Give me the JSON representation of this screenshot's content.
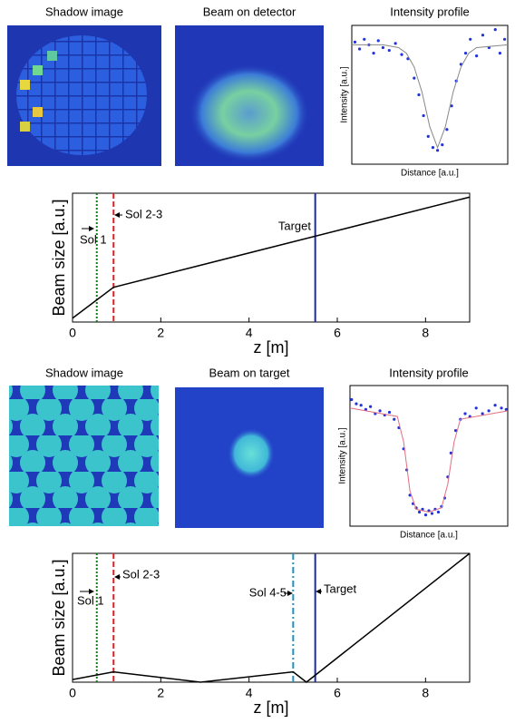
{
  "images": [
    {
      "title": "Shadow image"
    },
    {
      "title": "Beam on detector"
    },
    {
      "title": "Shadow image"
    },
    {
      "title": "Beam on target"
    }
  ],
  "chart_data": [
    {
      "type": "scatter",
      "title": "Intensity profile",
      "xlabel": "Distance [a.u.]",
      "ylabel": "Intensity [a.u.]",
      "xlim": [
        0,
        1
      ],
      "ylim": [
        0,
        1
      ],
      "series": [
        {
          "color": "#2233dd",
          "mode": "points",
          "x": [
            0.02,
            0.05,
            0.08,
            0.11,
            0.14,
            0.17,
            0.2,
            0.24,
            0.28,
            0.32,
            0.36,
            0.4,
            0.43,
            0.46,
            0.49,
            0.52,
            0.55,
            0.58,
            0.61,
            0.64,
            0.67,
            0.7,
            0.73,
            0.76,
            0.8,
            0.84,
            0.88,
            0.92,
            0.95,
            0.98
          ],
          "values": [
            0.88,
            0.83,
            0.9,
            0.86,
            0.8,
            0.89,
            0.84,
            0.82,
            0.87,
            0.79,
            0.76,
            0.62,
            0.5,
            0.35,
            0.2,
            0.12,
            0.1,
            0.14,
            0.25,
            0.42,
            0.6,
            0.72,
            0.8,
            0.9,
            0.78,
            0.93,
            0.84,
            0.97,
            0.8,
            0.9
          ]
        },
        {
          "color": "#888888",
          "mode": "line",
          "x": [
            0,
            0.2,
            0.3,
            0.35,
            0.4,
            0.45,
            0.5,
            0.55,
            0.6,
            0.65,
            0.7,
            0.75,
            0.8,
            1
          ],
          "values": [
            0.86,
            0.86,
            0.84,
            0.8,
            0.7,
            0.52,
            0.27,
            0.12,
            0.27,
            0.52,
            0.7,
            0.8,
            0.84,
            0.86
          ]
        }
      ]
    },
    {
      "type": "line",
      "xlabel": "z [m]",
      "ylabel": "Beam size [a.u.]",
      "xlim": [
        0,
        9
      ],
      "xticks": [
        0,
        2,
        4,
        6,
        8
      ],
      "ylim": [
        0,
        1
      ],
      "series": [
        {
          "color": "#000000",
          "x": [
            0,
            0.93,
            9
          ],
          "values": [
            0.03,
            0.27,
            0.97
          ]
        }
      ],
      "markers": [
        {
          "label": "Sol 1",
          "x": 0.55,
          "color": "#1a7a1a",
          "style": "dotted"
        },
        {
          "label": "Sol 2-3",
          "x": 0.93,
          "color": "#e02020",
          "style": "dashed"
        },
        {
          "label": "Target",
          "x": 5.5,
          "color": "#1a2aa8",
          "style": "solid"
        }
      ]
    },
    {
      "type": "scatter",
      "title": "Intensity profile",
      "xlabel": "Distance [a.u.]",
      "ylabel": "Intensity [a.u.]",
      "xlim": [
        0,
        1
      ],
      "ylim": [
        0,
        1
      ],
      "series": [
        {
          "color": "#2233dd",
          "mode": "points",
          "x": [
            0.01,
            0.04,
            0.07,
            0.1,
            0.13,
            0.16,
            0.19,
            0.22,
            0.25,
            0.28,
            0.31,
            0.34,
            0.36,
            0.38,
            0.4,
            0.42,
            0.44,
            0.46,
            0.48,
            0.5,
            0.52,
            0.54,
            0.56,
            0.58,
            0.6,
            0.62,
            0.64,
            0.67,
            0.7,
            0.73,
            0.76,
            0.8,
            0.84,
            0.88,
            0.92,
            0.96,
            0.99
          ],
          "values": [
            0.9,
            0.87,
            0.86,
            0.83,
            0.85,
            0.8,
            0.82,
            0.79,
            0.81,
            0.76,
            0.7,
            0.55,
            0.4,
            0.22,
            0.16,
            0.13,
            0.1,
            0.12,
            0.08,
            0.11,
            0.09,
            0.12,
            0.1,
            0.14,
            0.2,
            0.35,
            0.52,
            0.68,
            0.76,
            0.8,
            0.78,
            0.84,
            0.8,
            0.82,
            0.86,
            0.84,
            0.83
          ]
        },
        {
          "color": "#e07080",
          "mode": "line",
          "x": [
            0,
            0.3,
            0.34,
            0.38,
            0.42,
            0.5,
            0.58,
            0.62,
            0.66,
            0.7,
            1
          ],
          "values": [
            0.84,
            0.78,
            0.6,
            0.25,
            0.12,
            0.1,
            0.13,
            0.3,
            0.6,
            0.76,
            0.82
          ]
        }
      ]
    },
    {
      "type": "line",
      "xlabel": "z [m]",
      "ylabel": "Beam size [a.u.]",
      "xlim": [
        0,
        9
      ],
      "xticks": [
        0,
        2,
        4,
        6,
        8
      ],
      "ylim": [
        0,
        1
      ],
      "series": [
        {
          "color": "#000000",
          "x": [
            0,
            0.93,
            2.9,
            5.0,
            5.3,
            9
          ],
          "values": [
            0.02,
            0.08,
            0,
            0.08,
            0,
            1
          ]
        }
      ],
      "markers": [
        {
          "label": "Sol 1",
          "x": 0.55,
          "color": "#1a7a1a",
          "style": "dotted"
        },
        {
          "label": "Sol 2-3",
          "x": 0.93,
          "color": "#e02020",
          "style": "dashed"
        },
        {
          "label": "Sol 4-5",
          "x": 5.0,
          "color": "#2090c0",
          "style": "dashdot"
        },
        {
          "label": "Target",
          "x": 5.5,
          "color": "#1a2aa8",
          "style": "solid"
        }
      ]
    }
  ]
}
